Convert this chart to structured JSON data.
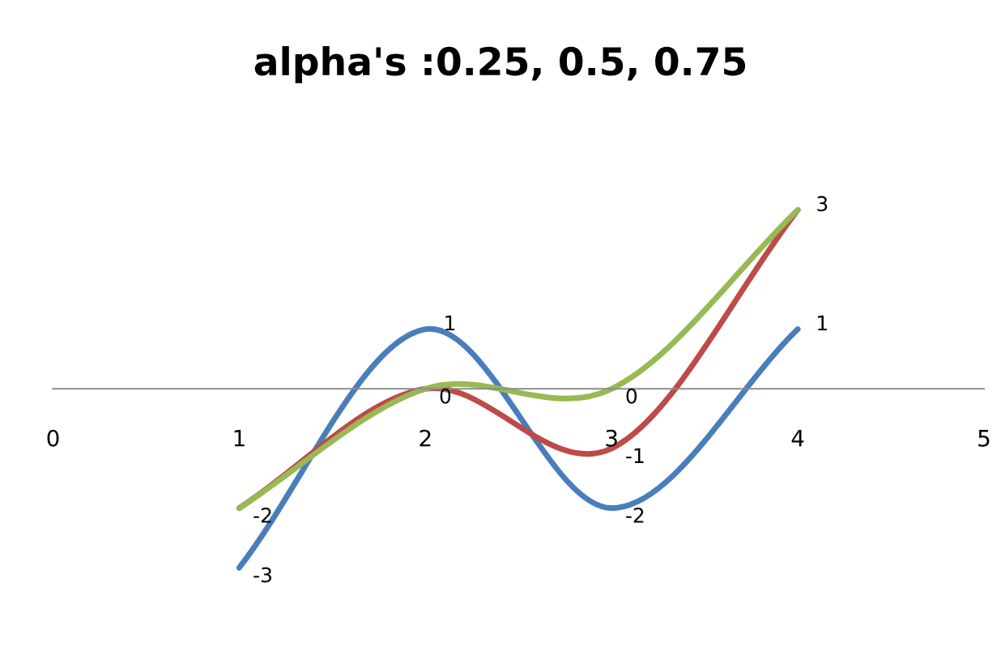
{
  "chart_data": {
    "type": "line",
    "title": "alpha's :0.25, 0.5, 0.75",
    "x": [
      1,
      2,
      3,
      4
    ],
    "series": [
      {
        "color": "#4a7ebb",
        "values": [
          -3,
          1,
          -2,
          1
        ],
        "value_labels": [
          "-3",
          "1",
          "-2",
          "1"
        ]
      },
      {
        "color": "#be4b48",
        "values": [
          -2,
          0,
          -1,
          3
        ],
        "value_labels": [
          "-2",
          "0",
          "-1",
          "3"
        ]
      },
      {
        "color": "#98b954",
        "values": [
          -2,
          0,
          0,
          3
        ],
        "value_labels": [
          null,
          null,
          "0",
          null
        ]
      }
    ],
    "xlim": [
      0,
      5
    ],
    "xticks": [
      0,
      1,
      2,
      3,
      4,
      5
    ],
    "tick_labels": "x",
    "grid": false,
    "legend": false,
    "marker": "none",
    "line_style": "solid"
  }
}
